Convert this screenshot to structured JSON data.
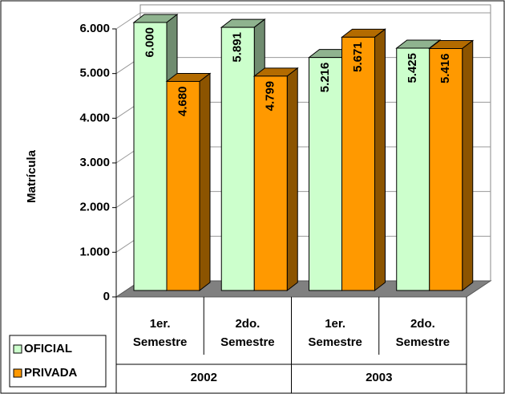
{
  "chart_data": {
    "type": "bar3d",
    "y_label": "Matrícula",
    "categories": [
      [
        "1er.",
        "Semestre"
      ],
      [
        "2do.",
        "Semestre"
      ],
      [
        "1er.",
        "Semestre"
      ],
      [
        "2do.",
        "Semestre"
      ]
    ],
    "groups": [
      "2002",
      "2003"
    ],
    "series": [
      {
        "name": "OFICIAL",
        "color": "#ccffcc",
        "values": [
          6000,
          5891,
          5216,
          5425
        ],
        "value_labels": [
          "6.000",
          "5.891",
          "5.216",
          "5.425"
        ]
      },
      {
        "name": "PRIVADA",
        "color": "#ff9900",
        "values": [
          4680,
          4799,
          5671,
          5416
        ],
        "value_labels": [
          "4.680",
          "4.799",
          "5.671",
          "5.416"
        ]
      }
    ],
    "ylim": [
      0,
      6000
    ],
    "yticks": [
      0,
      {
        "value": 1000,
        "label": "1.000"
      },
      {
        "value": 2000,
        "label": "2.000"
      },
      {
        "value": 3000,
        "label": "3.000"
      },
      {
        "value": 4000,
        "label": "4.000"
      },
      {
        "value": 5000,
        "label": "5.000"
      },
      {
        "value": 6000,
        "label": "6.000"
      }
    ],
    "grid": true
  }
}
